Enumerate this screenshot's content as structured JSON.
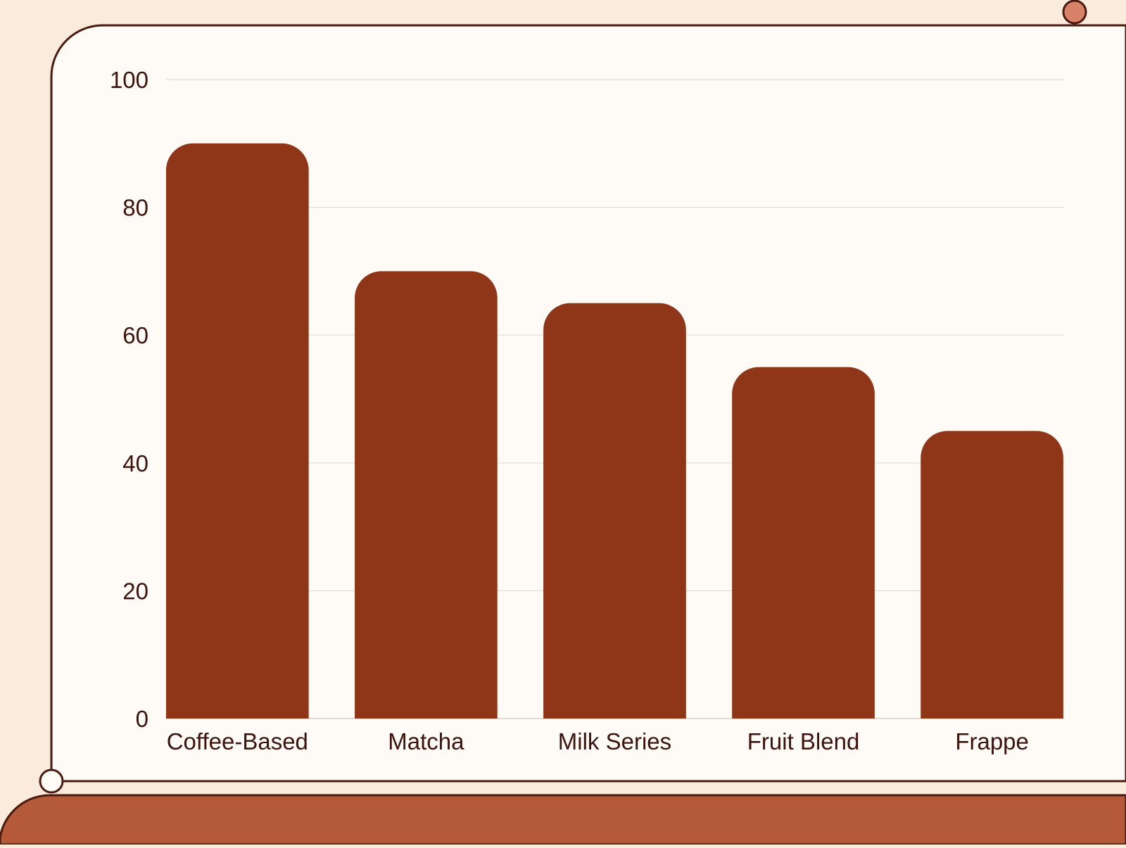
{
  "theme": {
    "page_background": "#faebdd",
    "card_background": "#fefaf5",
    "card_outline": "#4a1a0f",
    "bar_color": "#8f3619",
    "footer_band": "#b55a38",
    "dot_accent": "#d9826a",
    "gridline_color": "#e3dcd4",
    "text_color": "#3d140d"
  },
  "chart_data": {
    "type": "bar",
    "categories": [
      "Coffee-Based",
      "Matcha",
      "Milk Series",
      "Fruit Blend",
      "Frappe"
    ],
    "values": [
      90,
      70,
      65,
      55,
      45
    ],
    "ylim": [
      0,
      100
    ],
    "yticks": [
      0,
      20,
      40,
      60,
      80,
      100
    ],
    "grid": true,
    "legend": "none"
  }
}
